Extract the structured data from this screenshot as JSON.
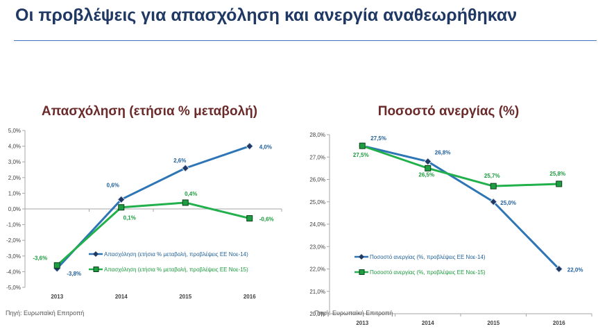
{
  "page": {
    "title": "Οι προβλέψεις για απασχόληση και ανεργία αναθεωρήθηκαν"
  },
  "colors": {
    "title": "#1f3864",
    "chart_title": "#6b2a2a",
    "series_blue": "#2e75b6",
    "series_green": "#21b04b",
    "label_blue": "#1f5f99",
    "label_green": "#1a9a3c"
  },
  "chart_data": [
    {
      "type": "line",
      "title": "Απασχόληση (ετήσια % μεταβολή)",
      "categories": [
        "2013",
        "2014",
        "2015",
        "2016"
      ],
      "ylim": [
        -5,
        5
      ],
      "ytick_labels": [
        "-5,0%",
        "-4,0%",
        "-3,0%",
        "-2,0%",
        "-1,0%",
        "0,0%",
        "1,0%",
        "2,0%",
        "3,0%",
        "4,0%",
        "5,0%"
      ],
      "grid": false,
      "legend_position": "lower-center",
      "series": [
        {
          "name": "Απασχόληση (ετήσια % μεταβολή, προβλέψεις ΕΕ Νοε-14)",
          "values": [
            -3.8,
            0.6,
            2.6,
            4.0
          ],
          "labels": [
            "-3,8%",
            "0,6%",
            "2,6%",
            "4,0%"
          ],
          "marker": "diamond"
        },
        {
          "name": "Απασχόληση (ετήσια % μεταβολή, προβλέψεις ΕΕ Νοε-15)",
          "values": [
            -3.6,
            0.1,
            0.4,
            -0.6
          ],
          "labels": [
            "-3,6%",
            "0,1%",
            "0,4%",
            "-0,6%"
          ],
          "marker": "square"
        }
      ],
      "source": "Πηγή: Ευρωπαϊκή Επιτροπή"
    },
    {
      "type": "line",
      "title": "Ποσοστό ανεργίας (%)",
      "categories": [
        "2013",
        "2014",
        "2015",
        "2016"
      ],
      "ylim": [
        20,
        28
      ],
      "ytick_labels": [
        "20,0%",
        "21,0%",
        "22,0%",
        "23,0%",
        "24,0%",
        "25,0%",
        "26,0%",
        "27,0%",
        "28,0%"
      ],
      "grid": false,
      "legend_position": "lower-left",
      "series": [
        {
          "name": "Ποσοστό ανεργίας (%, προβλέψεις ΕΕ Νοε-14)",
          "values": [
            27.5,
            26.8,
            25.0,
            22.0
          ],
          "labels": [
            "27,5%",
            "26,8%",
            "25,0%",
            "22,0%"
          ],
          "marker": "diamond"
        },
        {
          "name": "Ποσοστό ανεργίας (%, προβλέψεις ΕΕ Νοε-15)",
          "values": [
            27.5,
            26.5,
            25.7,
            25.8
          ],
          "labels": [
            "27,5%",
            "26,5%",
            "25,7%",
            "25,8%"
          ],
          "marker": "square"
        }
      ],
      "source": "Πηγή: Ευρωπαϊκή Επιτροπή"
    }
  ]
}
